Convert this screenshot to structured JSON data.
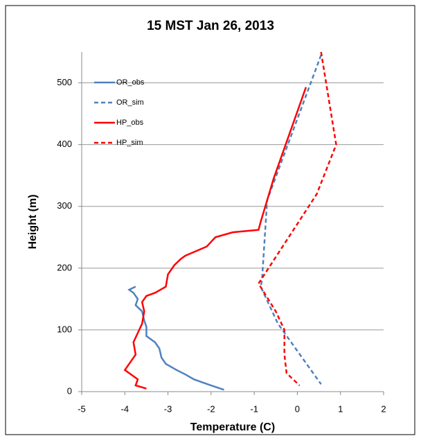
{
  "chart_data": {
    "type": "line",
    "title": "15 MST Jan 26, 2013",
    "x_label": "Temperature (C)",
    "y_label": "Height (m)",
    "xlim": [
      -5,
      2
    ],
    "xticks": [
      -5,
      -4,
      -3,
      -2,
      -1,
      0,
      1,
      2
    ],
    "ylim": [
      0,
      550
    ],
    "yticks": [
      0,
      100,
      200,
      300,
      400,
      500
    ],
    "grid": true,
    "legend": "upper-left",
    "series": [
      {
        "name": "OR_obs",
        "color": "#4f81bd",
        "dashed": false,
        "x": [
          -3.75,
          -3.9,
          -3.8,
          -3.7,
          -3.75,
          -3.6,
          -3.55,
          -3.5,
          -3.5,
          -3.3,
          -3.2,
          -3.15,
          -3.05,
          -2.8,
          -2.6,
          -2.4,
          -2.2,
          -2.0,
          -1.7
        ],
        "values": [
          170,
          165,
          160,
          150,
          140,
          130,
          115,
          105,
          90,
          80,
          70,
          55,
          45,
          35,
          28,
          20,
          15,
          10,
          3
        ]
      },
      {
        "name": "OR_sim",
        "color": "#4f81bd",
        "dashed": true,
        "x": [
          0.55,
          -0.7,
          -0.82,
          -0.85,
          -0.45,
          0.55
        ],
        "values": [
          545,
          310,
          180,
          170,
          110,
          12
        ]
      },
      {
        "name": "HP_obs",
        "color": "#ff0000",
        "dashed": false,
        "x": [
          0.2,
          -0.55,
          -0.85,
          -0.9,
          -1.5,
          -1.9,
          -2.1,
          -2.6,
          -2.7,
          -2.85,
          -3.0,
          -3.05,
          -3.3,
          -3.5,
          -3.6,
          -3.55,
          -3.6,
          -3.7,
          -3.8,
          -3.75,
          -3.9,
          -4.0,
          -3.8,
          -3.7,
          -3.75,
          -3.5
        ],
        "values": [
          493,
          345,
          275,
          262,
          258,
          250,
          235,
          220,
          215,
          205,
          190,
          170,
          160,
          155,
          145,
          130,
          110,
          95,
          80,
          60,
          45,
          35,
          25,
          20,
          10,
          5
        ]
      },
      {
        "name": "HP_sim",
        "color": "#ff0000",
        "dashed": true,
        "x": [
          0.55,
          0.9,
          0.45,
          -0.9,
          -0.5,
          -0.3,
          -0.3,
          -0.25,
          0.05
        ],
        "values": [
          550,
          400,
          320,
          175,
          130,
          100,
          60,
          30,
          10
        ]
      }
    ]
  }
}
